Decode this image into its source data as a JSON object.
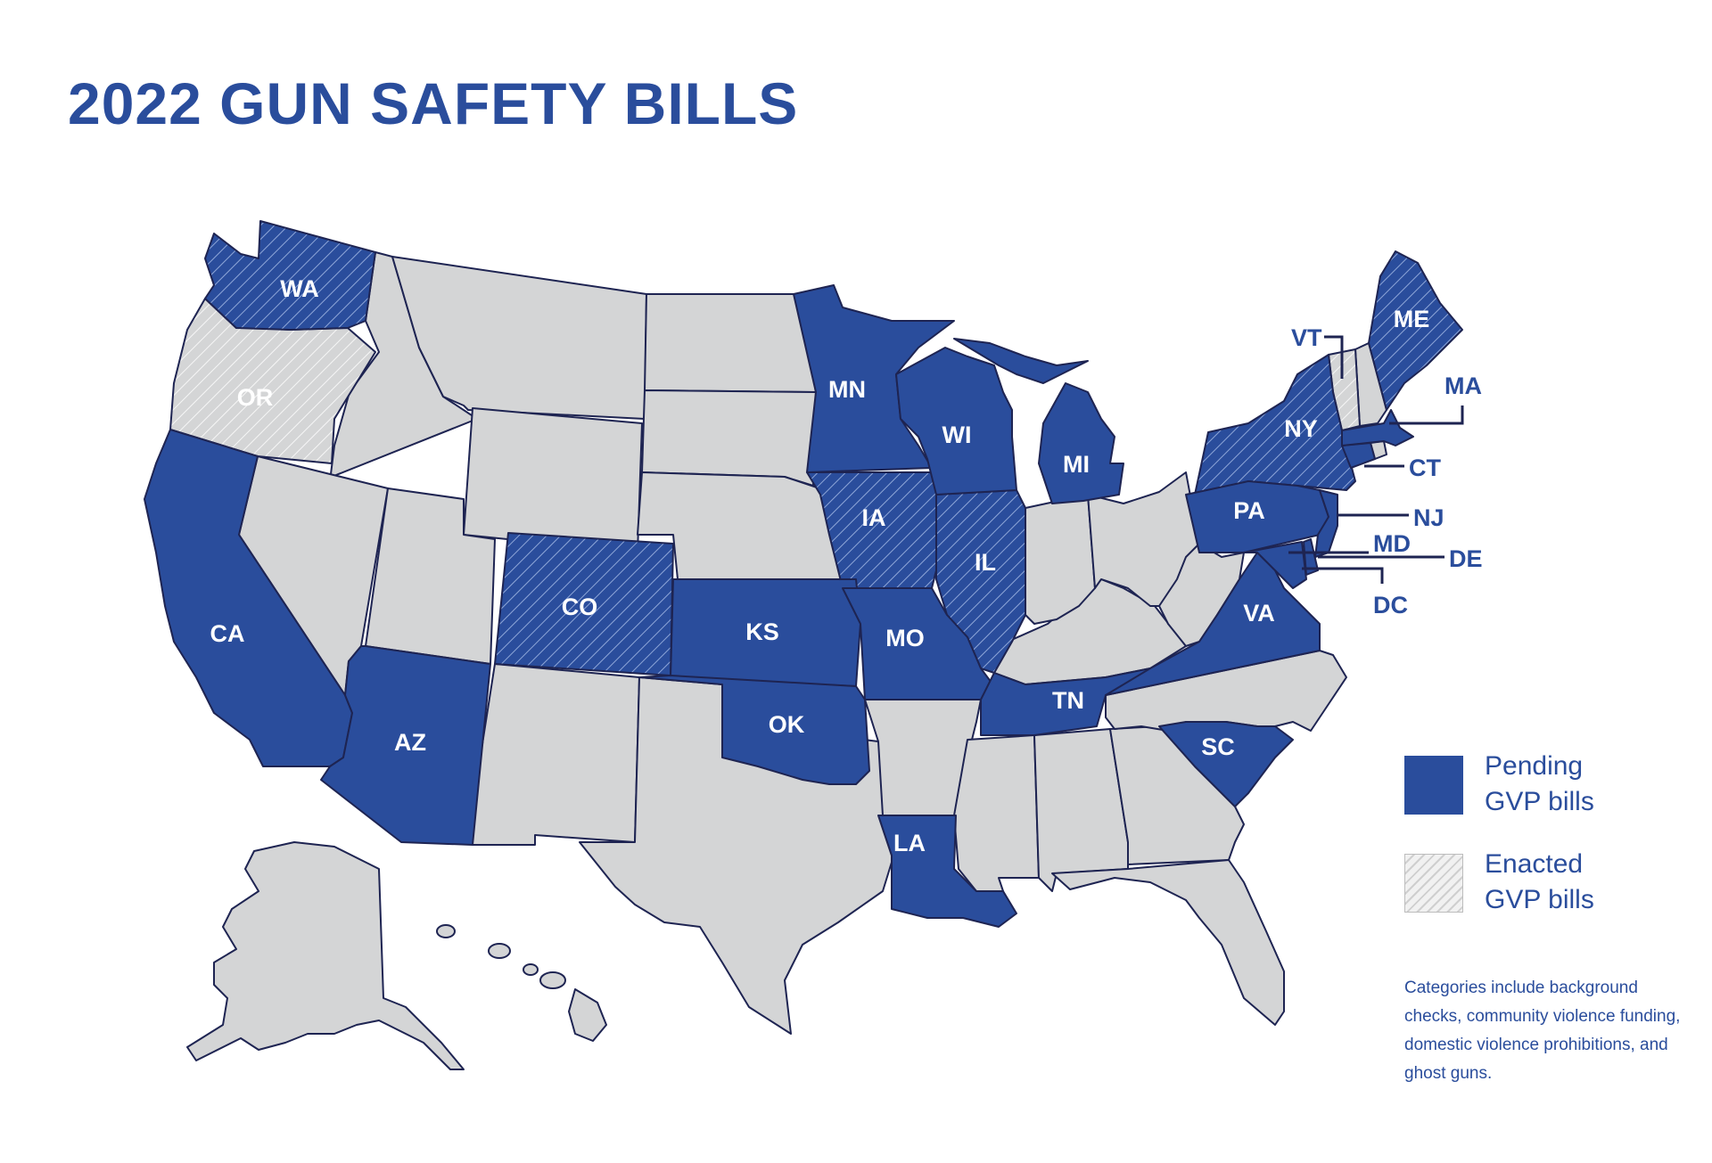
{
  "title": "2022 GUN SAFETY BILLS",
  "colors": {
    "pending": "#2a4d9c",
    "enacted_hatch": "#d4d4d4",
    "none": "#d4d5d6",
    "border": "#1e2452",
    "label_dark": "#2a4d9c"
  },
  "legend": [
    {
      "key": "pending",
      "label_line1": "Pending",
      "label_line2": "GVP bills"
    },
    {
      "key": "enacted",
      "label_line1": "Enacted",
      "label_line2": "GVP bills"
    }
  ],
  "note": "Categories include background checks, community violence funding, domestic violence prohibitions, and ghost guns.",
  "map_labels": {
    "WA": "WA",
    "OR": "OR",
    "CA": "CA",
    "AZ": "AZ",
    "CO": "CO",
    "KS": "KS",
    "OK": "OK",
    "MN": "MN",
    "IA": "IA",
    "MO": "MO",
    "LA": "LA",
    "WI": "WI",
    "IL": "IL",
    "MI": "MI",
    "TN": "TN",
    "SC": "SC",
    "VA": "VA",
    "PA": "PA",
    "NY": "NY",
    "ME": "ME",
    "VT": "VT",
    "MA": "MA",
    "CT": "CT",
    "NJ": "NJ",
    "MD": "MD",
    "DE": "DE",
    "DC": "DC"
  },
  "states": {
    "pending": [
      "CA",
      "AZ",
      "KS",
      "OK",
      "MN",
      "MO",
      "LA",
      "WI",
      "MI",
      "TN",
      "SC",
      "VA",
      "PA",
      "MA",
      "CT",
      "NJ",
      "DE",
      "MD",
      "DC"
    ],
    "pending_hatched": [
      "WA",
      "CO",
      "IA",
      "IL",
      "NY",
      "ME"
    ],
    "enacted": [
      "OR",
      "VT"
    ]
  }
}
